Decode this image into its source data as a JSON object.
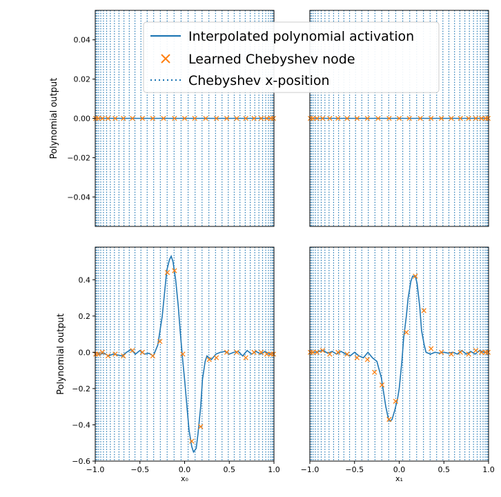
{
  "colors": {
    "line": "#1f77b4",
    "marker": "#ff7f0e",
    "axis": "#000000",
    "background": "#ffffff",
    "legend_border": "#cccccc"
  },
  "legend": {
    "placement": "top-center",
    "entries": [
      {
        "label": "Interpolated polynomial activation",
        "style": "solid-line"
      },
      {
        "label": "Learned Chebyshev node",
        "style": "x-marker"
      },
      {
        "label": "Chebyshev x-position",
        "style": "dotted-line"
      }
    ]
  },
  "chart_data": [
    {
      "type": "line",
      "panel": "top-left",
      "xlabel": "",
      "ylabel": "Polynomial output",
      "xlim": [
        -1.0,
        1.0
      ],
      "ylim": [
        -0.055,
        0.055
      ],
      "yticks": [
        -0.04,
        -0.02,
        0.0,
        0.02,
        0.04
      ],
      "ytick_labels": [
        "−0.04",
        "−0.02",
        "0.00",
        "0.02",
        "0.04"
      ],
      "xticks": [],
      "xtick_labels": [],
      "grid": false,
      "series": [
        {
          "kind": "line",
          "x": [
            -1.0,
            -0.9,
            -0.8,
            -0.7,
            -0.6,
            -0.5,
            -0.4,
            -0.3,
            -0.2,
            -0.1,
            0.0,
            0.1,
            0.2,
            0.3,
            0.4,
            0.5,
            0.6,
            0.7,
            0.8,
            0.9,
            1.0
          ],
          "y": [
            0,
            0,
            0,
            0,
            0,
            0,
            0,
            0,
            0,
            0,
            0,
            0,
            0,
            0,
            0,
            0,
            0,
            0,
            0,
            0,
            0
          ]
        },
        {
          "kind": "markers",
          "x": [
            -0.995,
            -0.967,
            -0.92,
            -0.857,
            -0.777,
            -0.685,
            -0.583,
            -0.472,
            -0.356,
            -0.236,
            -0.113,
            0.0,
            0.113,
            0.236,
            0.356,
            0.472,
            0.583,
            0.685,
            0.777,
            0.857,
            0.92,
            0.967,
            0.995
          ],
          "y": [
            0,
            0,
            0,
            0,
            0,
            0,
            0,
            0,
            0,
            0,
            0,
            0,
            0,
            0,
            0,
            0,
            0,
            0,
            0,
            0,
            0,
            0,
            0
          ]
        }
      ]
    },
    {
      "type": "line",
      "panel": "top-right",
      "xlabel": "",
      "ylabel": "",
      "xlim": [
        -1.0,
        1.0
      ],
      "ylim": [
        -0.055,
        0.055
      ],
      "yticks": [],
      "ytick_labels": [],
      "xticks": [],
      "xtick_labels": [],
      "grid": false,
      "series": [
        {
          "kind": "line",
          "x": [
            -1.0,
            -0.9,
            -0.8,
            -0.7,
            -0.6,
            -0.5,
            -0.4,
            -0.3,
            -0.2,
            -0.1,
            0.0,
            0.1,
            0.2,
            0.3,
            0.4,
            0.5,
            0.6,
            0.7,
            0.8,
            0.9,
            1.0
          ],
          "y": [
            0,
            0,
            0,
            0,
            0,
            0,
            0,
            0,
            0,
            0,
            0,
            0,
            0,
            0,
            0,
            0,
            0,
            0,
            0,
            0,
            0
          ]
        },
        {
          "kind": "markers",
          "x": [
            -0.995,
            -0.967,
            -0.92,
            -0.857,
            -0.777,
            -0.685,
            -0.583,
            -0.472,
            -0.356,
            -0.236,
            -0.113,
            0.0,
            0.113,
            0.236,
            0.356,
            0.472,
            0.583,
            0.685,
            0.777,
            0.857,
            0.92,
            0.967,
            0.995
          ],
          "y": [
            0,
            0,
            0,
            0,
            0,
            0,
            0,
            0,
            0,
            0,
            0,
            0,
            0,
            0,
            0,
            0,
            0,
            0,
            0,
            0,
            0,
            0,
            0
          ]
        }
      ]
    },
    {
      "type": "line",
      "panel": "bottom-left",
      "xlabel": "x₀",
      "ylabel": "Polynomial output",
      "xlim": [
        -1.0,
        1.0
      ],
      "ylim": [
        -0.6,
        0.58
      ],
      "yticks": [
        -0.6,
        -0.4,
        -0.2,
        0.0,
        0.2,
        0.4
      ],
      "ytick_labels": [
        "−0.6",
        "−0.4",
        "−0.2",
        "0.0",
        "0.2",
        "0.4"
      ],
      "xticks": [
        -1.0,
        -0.5,
        0.0,
        0.5,
        1.0
      ],
      "xtick_labels": [
        "−1.0",
        "−0.5",
        "0.0",
        "0.5",
        "1.0"
      ],
      "grid": false,
      "series": [
        {
          "kind": "line",
          "x": [
            -1.0,
            -0.95,
            -0.9,
            -0.85,
            -0.8,
            -0.75,
            -0.7,
            -0.65,
            -0.6,
            -0.55,
            -0.5,
            -0.45,
            -0.4,
            -0.35,
            -0.3,
            -0.25,
            -0.2,
            -0.17,
            -0.15,
            -0.13,
            -0.1,
            -0.07,
            -0.05,
            -0.02,
            0.0,
            0.03,
            0.05,
            0.08,
            0.1,
            0.13,
            0.15,
            0.18,
            0.2,
            0.23,
            0.25,
            0.3,
            0.35,
            0.4,
            0.45,
            0.5,
            0.55,
            0.6,
            0.65,
            0.7,
            0.75,
            0.8,
            0.85,
            0.9,
            0.95,
            1.0
          ],
          "y": [
            0.0,
            -0.01,
            -0.005,
            -0.02,
            -0.01,
            -0.015,
            -0.02,
            0.0,
            0.015,
            -0.01,
            0.01,
            -0.01,
            -0.005,
            -0.02,
            0.04,
            0.2,
            0.45,
            0.51,
            0.53,
            0.5,
            0.4,
            0.25,
            0.12,
            -0.05,
            -0.15,
            -0.32,
            -0.43,
            -0.52,
            -0.55,
            -0.53,
            -0.45,
            -0.3,
            -0.15,
            -0.05,
            -0.02,
            -0.04,
            -0.01,
            0.0,
            0.005,
            -0.01,
            0.0,
            0.005,
            -0.02,
            0.01,
            -0.01,
            0.005,
            -0.01,
            0.005,
            -0.01,
            -0.005
          ]
        },
        {
          "kind": "markers",
          "x": [
            -0.995,
            -0.967,
            -0.92,
            -0.857,
            -0.777,
            -0.685,
            -0.583,
            -0.472,
            -0.356,
            -0.276,
            -0.193,
            -0.113,
            -0.02,
            0.08,
            0.18,
            0.276,
            0.356,
            0.472,
            0.583,
            0.685,
            0.777,
            0.857,
            0.92,
            0.967,
            0.995
          ],
          "y": [
            -0.01,
            -0.01,
            0.0,
            -0.02,
            -0.01,
            -0.02,
            0.01,
            0.0,
            -0.02,
            0.06,
            0.44,
            0.45,
            -0.01,
            -0.49,
            -0.41,
            -0.04,
            -0.03,
            0.0,
            0.0,
            -0.03,
            0.0,
            0.0,
            -0.01,
            -0.01,
            -0.01
          ]
        }
      ]
    },
    {
      "type": "line",
      "panel": "bottom-right",
      "xlabel": "x₁",
      "ylabel": "",
      "xlim": [
        -1.0,
        1.0
      ],
      "ylim": [
        -0.6,
        0.58
      ],
      "yticks": [],
      "ytick_labels": [],
      "xticks": [
        -1.0,
        -0.5,
        0.0,
        0.5,
        1.0
      ],
      "xtick_labels": [
        "−1.0",
        "−0.5",
        "0.0",
        "0.5",
        "1.0"
      ],
      "grid": false,
      "series": [
        {
          "kind": "line",
          "x": [
            -1.0,
            -0.95,
            -0.9,
            -0.85,
            -0.8,
            -0.75,
            -0.7,
            -0.65,
            -0.6,
            -0.55,
            -0.5,
            -0.45,
            -0.4,
            -0.35,
            -0.3,
            -0.25,
            -0.2,
            -0.15,
            -0.12,
            -0.1,
            -0.08,
            -0.05,
            -0.02,
            0.0,
            0.03,
            0.05,
            0.08,
            0.1,
            0.13,
            0.15,
            0.18,
            0.2,
            0.23,
            0.25,
            0.28,
            0.3,
            0.35,
            0.4,
            0.45,
            0.5,
            0.55,
            0.6,
            0.65,
            0.7,
            0.75,
            0.8,
            0.85,
            0.9,
            0.95,
            1.0
          ],
          "y": [
            0.0,
            0.0,
            0.005,
            0.01,
            -0.005,
            0.005,
            -0.01,
            0.005,
            -0.01,
            -0.02,
            0.0,
            -0.02,
            -0.03,
            0.0,
            -0.03,
            -0.05,
            -0.14,
            -0.3,
            -0.37,
            -0.38,
            -0.37,
            -0.32,
            -0.26,
            -0.2,
            -0.05,
            0.08,
            0.2,
            0.3,
            0.39,
            0.42,
            0.42,
            0.38,
            0.25,
            0.12,
            0.04,
            0.0,
            -0.01,
            0.0,
            -0.005,
            0.0,
            -0.005,
            0.0,
            -0.01,
            0.01,
            -0.01,
            0.005,
            -0.01,
            0.01,
            0.0,
            0.005
          ]
        },
        {
          "kind": "markers",
          "x": [
            -0.995,
            -0.967,
            -0.92,
            -0.857,
            -0.777,
            -0.685,
            -0.583,
            -0.472,
            -0.356,
            -0.276,
            -0.193,
            -0.113,
            -0.04,
            0.08,
            0.18,
            0.276,
            0.356,
            0.472,
            0.583,
            0.685,
            0.777,
            0.857,
            0.92,
            0.967,
            0.995
          ],
          "y": [
            0.0,
            0.0,
            0.0,
            0.01,
            -0.01,
            0.0,
            -0.01,
            -0.03,
            -0.04,
            -0.11,
            -0.18,
            -0.37,
            -0.27,
            0.11,
            0.42,
            0.23,
            0.02,
            0.0,
            -0.01,
            0.0,
            -0.01,
            0.01,
            0.0,
            0.0,
            0.0
          ]
        }
      ]
    }
  ]
}
